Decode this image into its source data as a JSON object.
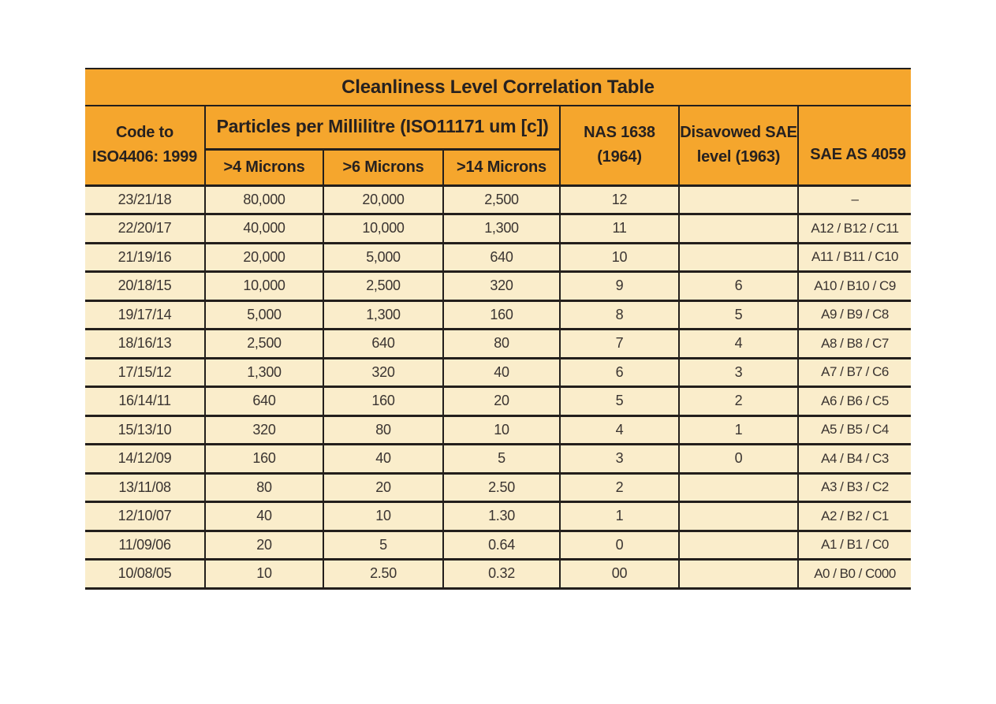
{
  "title": "Cleanliness Level Correlation Table",
  "header": {
    "code": {
      "line1": "Code to",
      "line2": "ISO4406: 1999"
    },
    "particles_group": "Particles per Millilitre (ISO11171 um [c])",
    "microns_4": ">4 Microns",
    "microns_6": ">6 Microns",
    "microns_14": ">14 Microns",
    "nas": {
      "line1": "NAS 1638",
      "line2": "(1964)"
    },
    "disavowed": {
      "line1": "Disavowed SAE",
      "line2": "level (1963)"
    },
    "sae_as": "SAE AS 4059"
  },
  "rows": [
    {
      "iso": "23/21/18",
      "m4": "80,000",
      "m6": "20,000",
      "m14": "2,500",
      "nas": "12",
      "sae_level": "",
      "sae_as": "–"
    },
    {
      "iso": "22/20/17",
      "m4": "40,000",
      "m6": "10,000",
      "m14": "1,300",
      "nas": "11",
      "sae_level": "",
      "sae_as": "A12 / B12 / C11"
    },
    {
      "iso": "21/19/16",
      "m4": "20,000",
      "m6": "5,000",
      "m14": "640",
      "nas": "10",
      "sae_level": "",
      "sae_as": "A11 / B11 / C10"
    },
    {
      "iso": "20/18/15",
      "m4": "10,000",
      "m6": "2,500",
      "m14": "320",
      "nas": "9",
      "sae_level": "6",
      "sae_as": "A10 / B10 / C9"
    },
    {
      "iso": "19/17/14",
      "m4": "5,000",
      "m6": "1,300",
      "m14": "160",
      "nas": "8",
      "sae_level": "5",
      "sae_as": "A9 / B9 / C8"
    },
    {
      "iso": "18/16/13",
      "m4": "2,500",
      "m6": "640",
      "m14": "80",
      "nas": "7",
      "sae_level": "4",
      "sae_as": "A8 / B8 / C7"
    },
    {
      "iso": "17/15/12",
      "m4": "1,300",
      "m6": "320",
      "m14": "40",
      "nas": "6",
      "sae_level": "3",
      "sae_as": "A7 / B7 / C6"
    },
    {
      "iso": "16/14/11",
      "m4": "640",
      "m6": "160",
      "m14": "20",
      "nas": "5",
      "sae_level": "2",
      "sae_as": "A6 / B6 / C5"
    },
    {
      "iso": "15/13/10",
      "m4": "320",
      "m6": "80",
      "m14": "10",
      "nas": "4",
      "sae_level": "1",
      "sae_as": "A5 / B5 / C4"
    },
    {
      "iso": "14/12/09",
      "m4": "160",
      "m6": "40",
      "m14": "5",
      "nas": "3",
      "sae_level": "0",
      "sae_as": "A4 / B4 / C3"
    },
    {
      "iso": "13/11/08",
      "m4": "80",
      "m6": "20",
      "m14": "2.50",
      "nas": "2",
      "sae_level": "",
      "sae_as": "A3 / B3 / C2"
    },
    {
      "iso": "12/10/07",
      "m4": "40",
      "m6": "10",
      "m14": "1.30",
      "nas": "1",
      "sae_level": "",
      "sae_as": "A2 / B2 / C1"
    },
    {
      "iso": "11/09/06",
      "m4": "20",
      "m6": "5",
      "m14": "0.64",
      "nas": "0",
      "sae_level": "",
      "sae_as": "A1 / B1 / C0"
    },
    {
      "iso": "10/08/05",
      "m4": "10",
      "m6": "2.50",
      "m14": "0.32",
      "nas": "00",
      "sae_level": "",
      "sae_as": "A0 / B0 / C000"
    }
  ],
  "colors": {
    "header_bg": "#F5A62D",
    "body_bg": "#FAEDCB",
    "grid_line": "#231F1C",
    "header_text": "#262120",
    "data_text": "#3A3431"
  }
}
